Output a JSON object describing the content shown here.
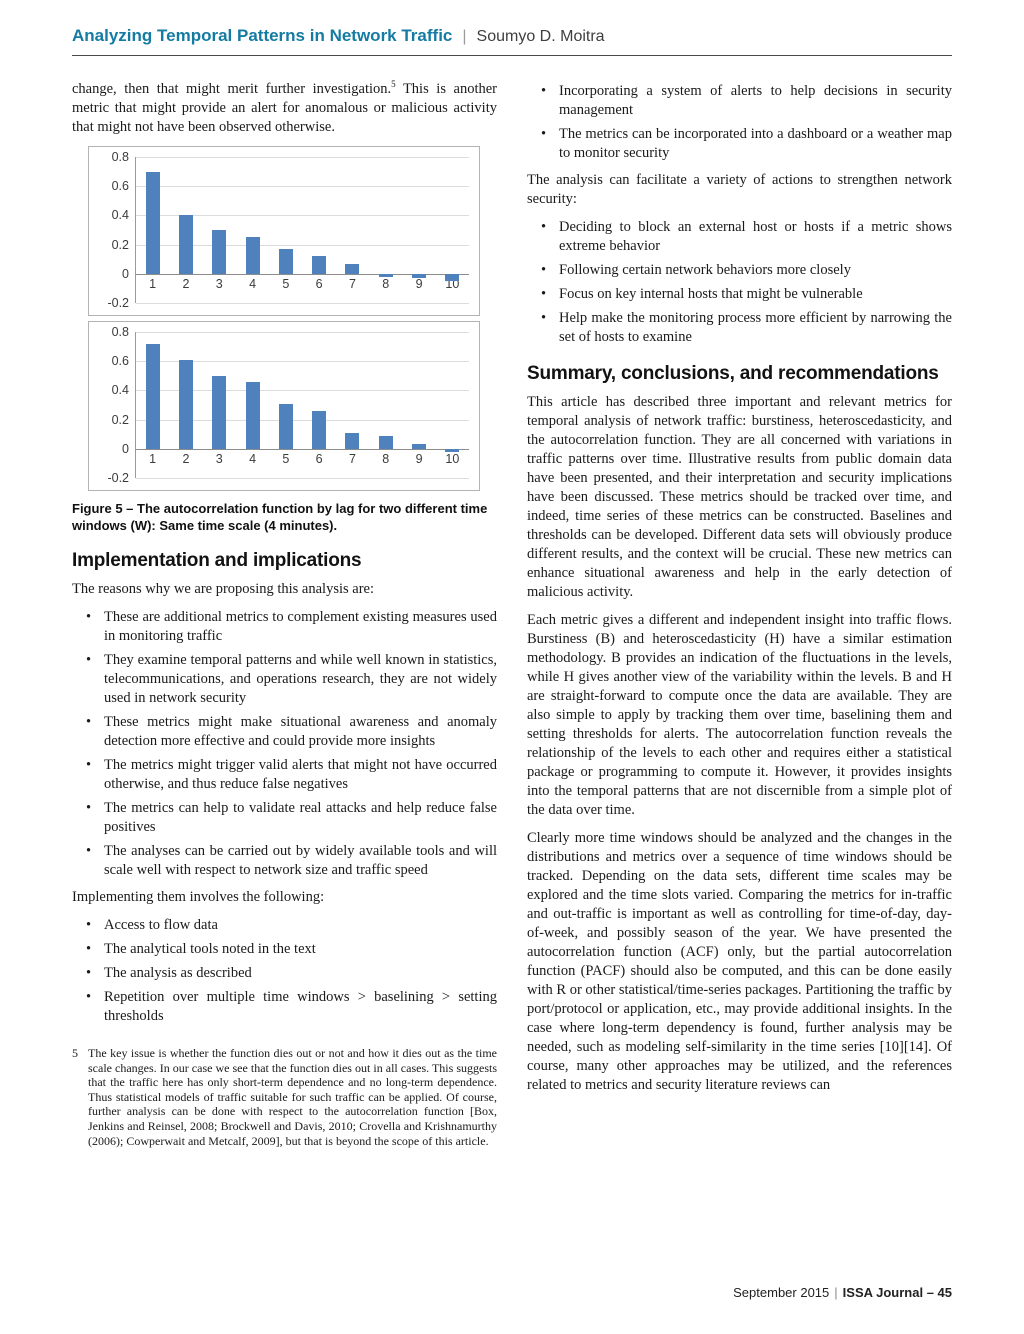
{
  "page": {
    "bullet_char": "•"
  },
  "header": {
    "title": "Analyzing Temporal Patterns in Network Traffic",
    "separator": "|",
    "author": "Soumyo D. Moitra",
    "accent_color": "#147ba3"
  },
  "left": {
    "intro": {
      "part1": "change, then that might merit further investigation.",
      "footnote_ref": "5",
      "part2": " This is another metric that might provide an alert for anomalous or malicious activity that might not have been observed otherwise."
    },
    "figure_caption": "Figure 5 – The autocorrelation function by lag for two different time windows (W): Same time scale (4 minutes).",
    "implementation_heading": "Implementation and implications",
    "reasons_intro": "The reasons why we are proposing this analysis are:",
    "reasons_bullets": [
      "These are additional metrics to complement existing measures used in monitoring traffic",
      "They examine temporal patterns and while well known in statistics, telecommunications, and operations research, they are not widely used in network security",
      "These metrics might make situational awareness and anomaly detection more effective and could provide more insights",
      "The metrics might trigger valid alerts that might not have occurred otherwise, and thus reduce false negatives",
      "The metrics can help to validate real attacks and help reduce false positives",
      "The analyses can be carried out by widely available tools and will scale well with respect to network size and traffic speed"
    ],
    "implementing_intro": "Implementing them involves the following:",
    "implementing_bullets": [
      "Access to flow data",
      "The analytical tools noted in the text",
      "The analysis as described",
      "Repetition over multiple time windows > baselining > setting thresholds"
    ],
    "footnote": {
      "number": "5",
      "text": "The key issue is whether the function dies out or not and how it dies out as the time scale changes. In our case we see that the function dies out in all cases. This suggests that the traffic here has only short-term dependence and no long-term dependence. Thus statistical models of traffic suitable for such traffic can be applied. Of course, further analysis can be done with respect to the autocorrelation function [Box, Jenkins and Reinsel, 2008; Brockwell and Davis, 2010; Crovella and Krishnamurthy (2006); Cowperwait and Metcalf, 2009], but that is beyond the scope of this article."
    }
  },
  "right": {
    "top_bullets": [
      "Incorporating a system of alerts to help decisions in security management",
      "The metrics can be incorporated into a dashboard or a weather map to monitor security"
    ],
    "actions_intro": "The analysis can facilitate a variety of actions to strengthen network security:",
    "actions_bullets": [
      "Deciding to block an external host or hosts if a metric shows extreme behavior",
      "Following certain network behaviors more closely",
      "Focus on key internal hosts that might be vulnerable",
      "Help make the monitoring process more efficient by narrowing the set of hosts to examine"
    ],
    "summary_heading": "Summary, conclusions, and recommendations",
    "summary_paragraphs": [
      "This article has described three important and relevant metrics for temporal analysis of network traffic: burstiness, heteroscedasticity, and the autocorrelation function. They are all concerned with variations in traffic patterns over time. Illustrative results from public domain data have been presented, and their interpretation and security implications have been discussed. These metrics should be tracked over time, and indeed, time series of these metrics can be constructed. Baselines and thresholds can be developed. Different data sets will obviously produce different results, and the context will be crucial. These new metrics can enhance situational awareness and help in the early detection of malicious activity.",
      "Each metric gives a different and independent insight into traffic flows. Burstiness (B) and heteroscedasticity (H) have a similar estimation methodology. B provides an indication of the fluctuations in the levels, while H gives another view of the variability within the levels. B and H are straight-forward to compute once the data are available. They are also simple to apply by tracking them over time, baselining them and setting thresholds for alerts. The autocorrelation function reveals the relationship of the levels to each other and requires either a statistical package or programming to compute it. However, it provides insights into the temporal patterns that are not discernible from a simple plot of the data over time.",
      "Clearly more time windows should be analyzed and the changes in the distributions and metrics over a sequence of time windows should be tracked. Depending on the data sets, different time scales may be explored and the time slots varied. Comparing the metrics for in-traffic and out-traffic is important as well as controlling for time-of-day, day-of-week, and possibly season of the year. We have presented the autocorrelation function (ACF) only, but the partial autocorrelation function (PACF) should also be computed, and this can be done easily with R or other statistical/time-series packages. Partitioning the traffic by port/protocol or application, etc., may provide additional insights. In the case where long-term dependency is found, further analysis may be needed, such as modeling self-similarity in the time series [10][14]. Of course, many other approaches may be utilized, and the references related to metrics and security literature reviews can"
    ]
  },
  "footer": {
    "date": "September 2015",
    "separator": "|",
    "journal_page": "ISSA Journal – 45"
  },
  "chart_data": [
    {
      "type": "bar",
      "title": "",
      "xlabel": "",
      "ylabel": "",
      "categories": [
        "1",
        "2",
        "3",
        "4",
        "5",
        "6",
        "7",
        "8",
        "9",
        "10"
      ],
      "values": [
        0.7,
        0.4,
        0.3,
        0.25,
        0.17,
        0.12,
        0.07,
        -0.02,
        -0.03,
        -0.05
      ],
      "ylim": [
        -0.2,
        0.8
      ],
      "ytick_values": [
        0.8,
        0.6,
        0.4,
        0.2,
        0,
        -0.2
      ],
      "ytick_labels": [
        "0.8",
        "0.6",
        "0.4",
        "0.2",
        "0",
        "-0.2"
      ],
      "grid": true,
      "legend": false,
      "bar_color": "#4f81bd"
    },
    {
      "type": "bar",
      "title": "",
      "xlabel": "",
      "ylabel": "",
      "categories": [
        "1",
        "2",
        "3",
        "4",
        "5",
        "6",
        "7",
        "8",
        "9",
        "10"
      ],
      "values": [
        0.72,
        0.61,
        0.5,
        0.46,
        0.31,
        0.26,
        0.11,
        0.09,
        0.03,
        -0.02
      ],
      "ylim": [
        -0.2,
        0.8
      ],
      "ytick_values": [
        0.8,
        0.6,
        0.4,
        0.2,
        0,
        -0.2
      ],
      "ytick_labels": [
        "0.8",
        "0.6",
        "0.4",
        "0.2",
        "0",
        "-0.2"
      ],
      "grid": true,
      "legend": false,
      "bar_color": "#4f81bd"
    }
  ]
}
